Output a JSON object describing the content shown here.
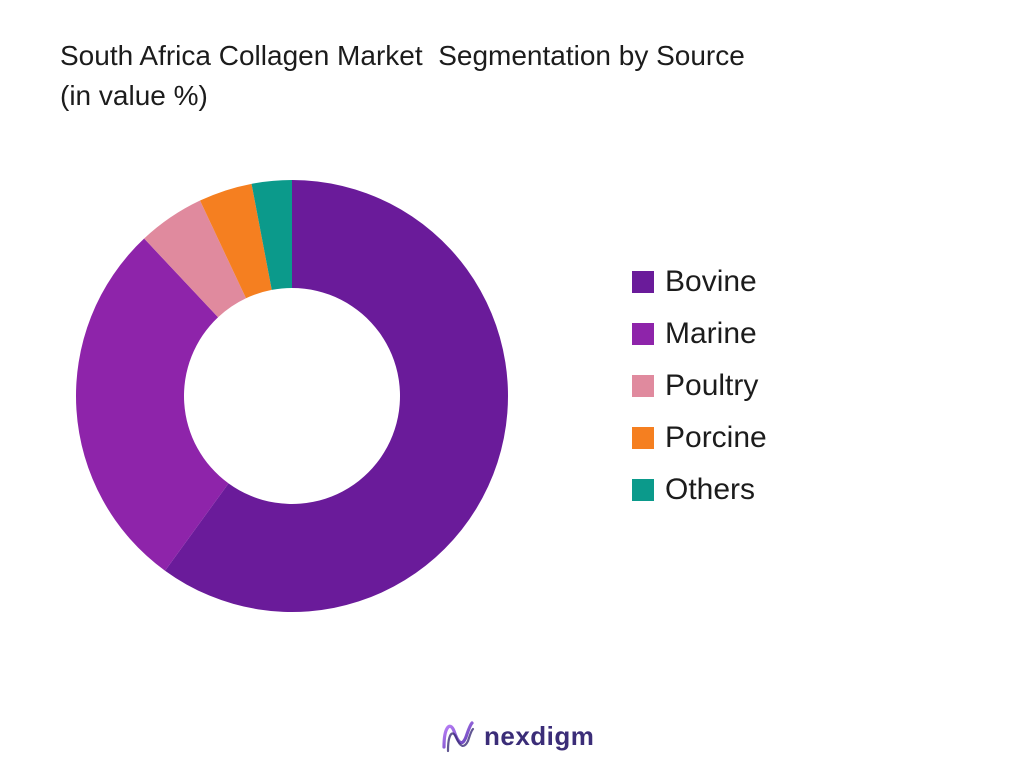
{
  "title": {
    "line1": "South Africa Collagen Market  Segmentation by Source",
    "line2": "(in value %)"
  },
  "colors": {
    "Bovine": "#6a1b9a",
    "Marine": "#8e24aa",
    "Poultry": "#e08a9e",
    "Porcine": "#f57f20",
    "Others": "#0b9a8b"
  },
  "chart_data": {
    "type": "pie",
    "variant": "donut",
    "title": "South Africa Collagen Market  Segmentation by Source (in value %)",
    "legend_position": "right",
    "start": "top",
    "direction": "clockwise",
    "series": [
      {
        "name": "Bovine",
        "value": 60,
        "color": "#6a1b9a"
      },
      {
        "name": "Marine",
        "value": 28,
        "color": "#8e24aa"
      },
      {
        "name": "Poultry",
        "value": 5,
        "color": "#e08a9e"
      },
      {
        "name": "Porcine",
        "value": 4,
        "color": "#f57f20"
      },
      {
        "name": "Others",
        "value": 3,
        "color": "#0b9a8b"
      }
    ]
  },
  "legend": {
    "items": [
      {
        "label": "Bovine",
        "color": "#6a1b9a"
      },
      {
        "label": "Marine",
        "color": "#8e24aa"
      },
      {
        "label": "Poultry",
        "color": "#e08a9e"
      },
      {
        "label": "Porcine",
        "color": "#f57f20"
      },
      {
        "label": "Others",
        "color": "#0b9a8b"
      }
    ]
  },
  "logo": {
    "text": "nexdigm",
    "icon": "nexdigm-logo-icon"
  }
}
